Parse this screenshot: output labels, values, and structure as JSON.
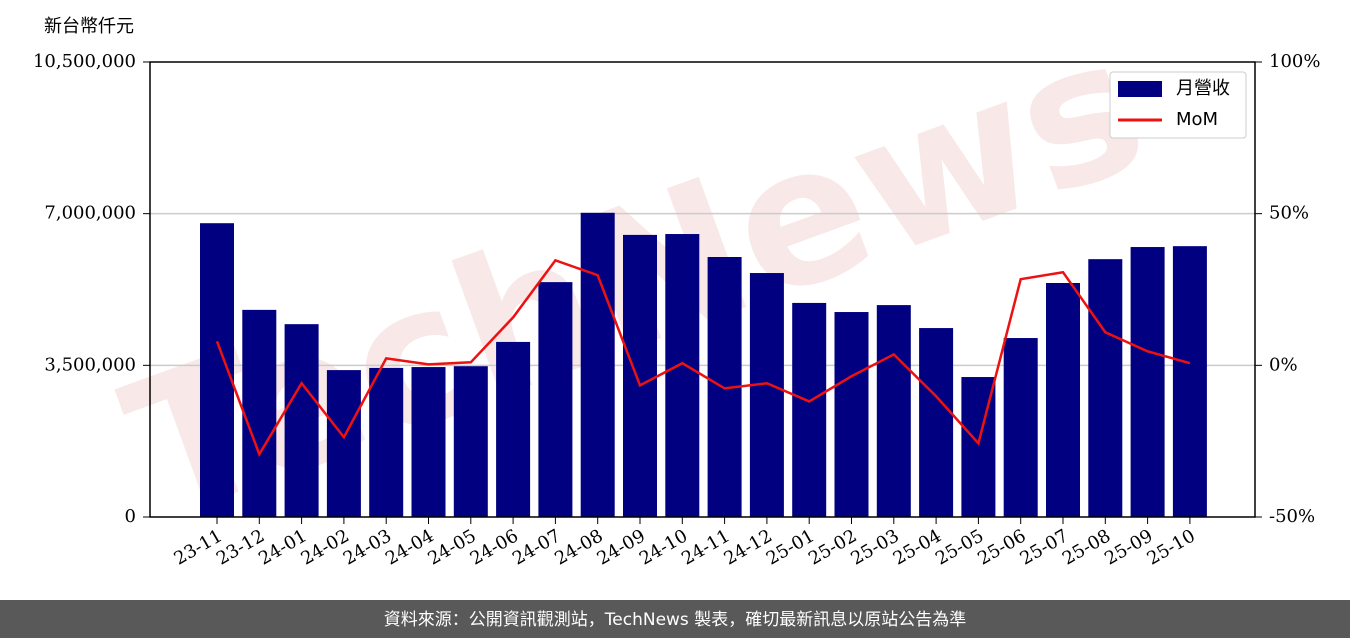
{
  "chart_data": {
    "type": "bar",
    "ylabel": "新台幣仟元",
    "watermark": "TechNews",
    "footer": "資料來源：公開資訊觀測站，TechNews 製表，確切最新訊息以原站公告為準",
    "categories": [
      "23-11",
      "23-12",
      "24-01",
      "24-02",
      "24-03",
      "24-04",
      "24-05",
      "24-06",
      "24-07",
      "24-08",
      "24-09",
      "24-10",
      "24-11",
      "24-12",
      "25-01",
      "25-02",
      "25-03",
      "25-04",
      "25-05",
      "25-06",
      "25-07",
      "25-08",
      "25-09",
      "25-10"
    ],
    "series": [
      {
        "name": "月營收",
        "type": "bar",
        "color": "#000080",
        "values": [
          6780000,
          4780000,
          4450000,
          3390000,
          3440000,
          3460000,
          3480000,
          4040000,
          5420000,
          7020000,
          6510000,
          6530000,
          6000000,
          5630000,
          4940000,
          4730000,
          4890000,
          4360000,
          3230000,
          4130000,
          5400000,
          5950000,
          6230000,
          6250000
        ]
      },
      {
        "name": "MoM",
        "type": "line",
        "axis": "y2",
        "color": "#ee1111",
        "values": [
          7.9,
          -29.3,
          -5.9,
          -23.7,
          2.3,
          0.3,
          1.0,
          15.8,
          34.6,
          29.7,
          -6.6,
          0.7,
          -7.6,
          -5.9,
          -11.9,
          -3.6,
          3.6,
          -10.2,
          -25.7,
          28.4,
          30.7,
          10.9,
          4.6,
          0.7
        ]
      }
    ],
    "ylim": [
      0,
      10500000
    ],
    "yticks": [
      0,
      {
        "value": 3500000,
        "label": "3,500,000"
      },
      {
        "value": 7000000,
        "label": "7,000,000"
      },
      {
        "value": 10500000,
        "label": "10,500,000"
      }
    ],
    "y2lim": [
      -50,
      100
    ],
    "y2ticks": [
      {
        "value": -50,
        "label": "-50%"
      },
      {
        "value": 0,
        "label": "0%"
      },
      {
        "value": 50,
        "label": "50%"
      },
      {
        "value": 100,
        "label": "100%"
      }
    ],
    "grid": true,
    "legend": "upper right"
  }
}
